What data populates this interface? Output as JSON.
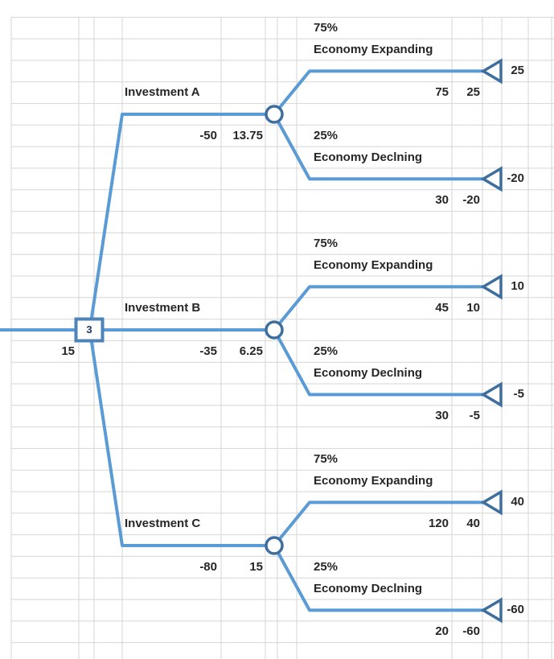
{
  "colors": {
    "branch_line": "#5B9BD5",
    "node_outline": "#3E6E9E",
    "decision_outline": "#4D83B8",
    "gridline": "#D6D6D6",
    "text": "#262626",
    "node_number": "#1F3864"
  },
  "tree": {
    "root_node": {
      "number": "3",
      "expected_value": "15"
    },
    "investments": [
      {
        "name": "Investment A",
        "cost": "-50",
        "expected_value": "13.75",
        "outcomes": [
          {
            "probability": "75%",
            "state": "Economy Expanding",
            "gross_payoff": "75",
            "net_payoff": "25",
            "terminal_value": "25"
          },
          {
            "probability": "25%",
            "state": "Economy Declning",
            "gross_payoff": "30",
            "net_payoff": "-20",
            "terminal_value": "-20"
          }
        ]
      },
      {
        "name": "Investment B",
        "cost": "-35",
        "expected_value": "6.25",
        "outcomes": [
          {
            "probability": "75%",
            "state": "Economy Expanding",
            "gross_payoff": "45",
            "net_payoff": "10",
            "terminal_value": "10"
          },
          {
            "probability": "25%",
            "state": "Economy Declning",
            "gross_payoff": "30",
            "net_payoff": "-5",
            "terminal_value": "-5"
          }
        ]
      },
      {
        "name": "Investment C",
        "cost": "-80",
        "expected_value": "15",
        "outcomes": [
          {
            "probability": "75%",
            "state": "Economy Expanding",
            "gross_payoff": "120",
            "net_payoff": "40",
            "terminal_value": "40"
          },
          {
            "probability": "25%",
            "state": "Economy Declning",
            "gross_payoff": "20",
            "net_payoff": "-60",
            "terminal_value": "-60"
          }
        ]
      }
    ]
  }
}
